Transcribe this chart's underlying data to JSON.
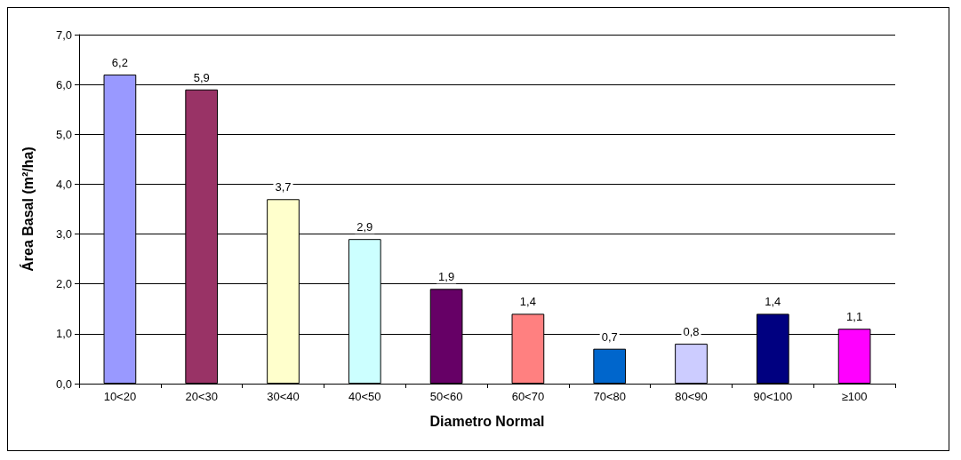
{
  "chart_data": {
    "type": "bar",
    "xlabel": "Diametro Normal",
    "ylabel": "Área Basal (m²/ha)",
    "categories": [
      "10<20",
      "20<30",
      "30<40",
      "40<50",
      "50<60",
      "60<70",
      "70<80",
      "80<90",
      "90<100",
      "≥100"
    ],
    "values": [
      6.2,
      5.9,
      3.7,
      2.9,
      1.9,
      1.4,
      0.7,
      0.8,
      1.4,
      1.1
    ],
    "value_labels": [
      "6,2",
      "5,9",
      "3,7",
      "2,9",
      "1,9",
      "1,4",
      "0,7",
      "0,8",
      "1,4",
      "1,1"
    ],
    "colors": [
      "#9999ff",
      "#993366",
      "#ffffcc",
      "#ccffff",
      "#660066",
      "#ff8080",
      "#0066cc",
      "#ccccff",
      "#000080",
      "#ff00ff"
    ],
    "ylim": [
      0,
      7
    ],
    "yticks": [
      {
        "value": 0,
        "label": "0,0"
      },
      {
        "value": 1,
        "label": "1,0"
      },
      {
        "value": 2,
        "label": "2,0"
      },
      {
        "value": 3,
        "label": "3,0"
      },
      {
        "value": 4,
        "label": "4,0"
      },
      {
        "value": 5,
        "label": "5,0"
      },
      {
        "value": 6,
        "label": "6,0"
      },
      {
        "value": 7,
        "label": "7,0"
      }
    ],
    "grid": "y"
  }
}
